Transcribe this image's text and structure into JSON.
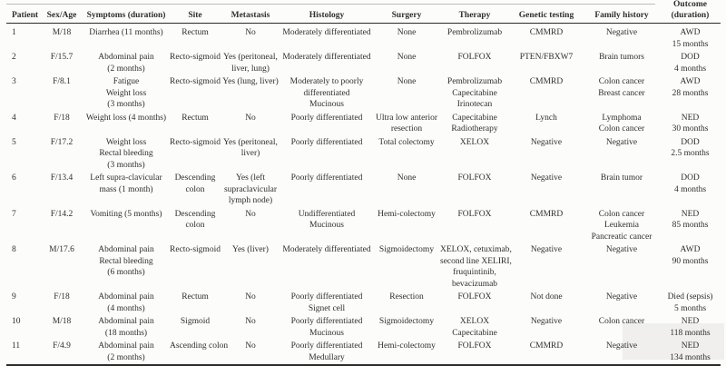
{
  "colors": {
    "text": "#2e2e2e",
    "rule_dark": "#2b2b2b",
    "rule_light": "#bdbdbd",
    "background": "#fcfcfb",
    "shade_patch": "#f0efee"
  },
  "table": {
    "columns": [
      {
        "id": "patient",
        "header": [
          "Patient"
        ]
      },
      {
        "id": "sex-age",
        "header": [
          "Sex/Age"
        ]
      },
      {
        "id": "symptoms",
        "header": [
          "Symptoms (duration)"
        ]
      },
      {
        "id": "site",
        "header": [
          "Site"
        ]
      },
      {
        "id": "metastasis",
        "header": [
          "Metastasis"
        ]
      },
      {
        "id": "histology",
        "header": [
          "Histology"
        ]
      },
      {
        "id": "surgery",
        "header": [
          "Surgery"
        ]
      },
      {
        "id": "therapy",
        "header": [
          "Therapy"
        ]
      },
      {
        "id": "genetic-testing",
        "header": [
          "Genetic testing"
        ]
      },
      {
        "id": "family-history",
        "header": [
          "Family history"
        ]
      },
      {
        "id": "outcome",
        "header": [
          "Outcome",
          "(duration)"
        ]
      }
    ],
    "rows": [
      {
        "cells": [
          [
            "1"
          ],
          [
            "M/18"
          ],
          [
            "Diarrhea (11 months)"
          ],
          [
            "Rectum"
          ],
          [
            "No"
          ],
          [
            "Moderately differentiated"
          ],
          [
            "None"
          ],
          [
            "Pembrolizumab"
          ],
          [
            "CMMRD"
          ],
          [
            "Negative"
          ],
          [
            "AWD",
            "15 months"
          ]
        ]
      },
      {
        "cells": [
          [
            "2"
          ],
          [
            "F/15.7"
          ],
          [
            "Abdominal pain",
            "(2 months)"
          ],
          [
            "Recto-sigmoid"
          ],
          [
            "Yes (peritoneal,",
            "liver, lung)"
          ],
          [
            "Moderately differentiated"
          ],
          [
            "None"
          ],
          [
            "FOLFOX"
          ],
          [
            "PTEN/FBXW7"
          ],
          [
            "Brain tumors"
          ],
          [
            "DOD",
            "4 months"
          ]
        ]
      },
      {
        "cells": [
          [
            "3"
          ],
          [
            "F/8.1"
          ],
          [
            "Fatigue",
            "Weight loss",
            "(3 months)"
          ],
          [
            "Recto-sigmoid"
          ],
          [
            "Yes (lung, liver)"
          ],
          [
            "Moderately to poorly",
            "differentiated",
            "Mucinous"
          ],
          [
            "None"
          ],
          [
            "Pembrolizumab",
            "Capecitabine",
            "Irinotecan"
          ],
          [
            "CMMRD"
          ],
          [
            "Colon cancer",
            "Breast cancer"
          ],
          [
            "AWD",
            "28 months"
          ]
        ]
      },
      {
        "cells": [
          [
            "4"
          ],
          [
            "F/18"
          ],
          [
            "Weight loss (4 months)"
          ],
          [
            "Rectum"
          ],
          [
            "No"
          ],
          [
            "Poorly differentiated"
          ],
          [
            "Ultra low anterior",
            "resection"
          ],
          [
            "Capecitabine",
            "Radiotherapy"
          ],
          [
            "Lynch"
          ],
          [
            "Lymphoma",
            "Colon cancer"
          ],
          [
            "NED",
            "30 months"
          ]
        ]
      },
      {
        "cells": [
          [
            "5"
          ],
          [
            "F/17.2"
          ],
          [
            "Weight loss",
            "Rectal bleeding",
            "(3 months)"
          ],
          [
            "Recto-sigmoid"
          ],
          [
            "Yes (peritoneal,",
            "liver)"
          ],
          [
            "Poorly differentiated"
          ],
          [
            "Total colectomy"
          ],
          [
            "XELOX"
          ],
          [
            "Negative"
          ],
          [
            "Negative"
          ],
          [
            "DOD",
            "2.5 months"
          ]
        ]
      },
      {
        "cells": [
          [
            "6"
          ],
          [
            "F/13.4"
          ],
          [
            "Left supra-clavicular",
            "mass (1 month)"
          ],
          [
            "Descending",
            "colon"
          ],
          [
            "Yes (left",
            "supraclavicular",
            "lymph node)"
          ],
          [
            "Poorly differentiated"
          ],
          [
            "None"
          ],
          [
            "FOLFOX"
          ],
          [
            "Negative"
          ],
          [
            "Brain tumor"
          ],
          [
            "DOD",
            "4 months"
          ]
        ]
      },
      {
        "cells": [
          [
            "7"
          ],
          [
            "F/14.2"
          ],
          [
            "Vomiting (5 months)"
          ],
          [
            "Descending",
            "colon"
          ],
          [
            "No"
          ],
          [
            "Undifferentiated",
            "Mucinous"
          ],
          [
            "Hemi-colectomy"
          ],
          [
            "FOLFOX"
          ],
          [
            "CMMRD"
          ],
          [
            "Colon cancer",
            "Leukemia",
            "Pancreatic cancer"
          ],
          [
            "NED",
            "85 months"
          ]
        ]
      },
      {
        "cells": [
          [
            "8"
          ],
          [
            "M/17.6"
          ],
          [
            "Abdominal pain",
            "Rectal bleeding",
            "(6 months)"
          ],
          [
            "Recto-sigmoid"
          ],
          [
            "Yes (liver)"
          ],
          [
            "Moderately differentiated"
          ],
          [
            "Sigmoidectomy"
          ],
          [
            "XELOX, cetuximab,",
            "second line XELIRI,",
            "fruquintinib,",
            "bevacizumab"
          ],
          [
            "Negative"
          ],
          [
            "Negative"
          ],
          [
            "AWD",
            "90 months"
          ]
        ]
      },
      {
        "cells": [
          [
            "9"
          ],
          [
            "F/18"
          ],
          [
            "Abdominal pain",
            "(4 months)"
          ],
          [
            "Rectum"
          ],
          [
            "No"
          ],
          [
            "Poorly differentiated",
            "Signet cell"
          ],
          [
            "Resection"
          ],
          [
            "FOLFOX"
          ],
          [
            "Not done"
          ],
          [
            "Negative"
          ],
          [
            "Died (sepsis)",
            "5 months"
          ]
        ]
      },
      {
        "cells": [
          [
            "10"
          ],
          [
            "M/18"
          ],
          [
            "Abdominal pain",
            "(18 months)"
          ],
          [
            "Sigmoid"
          ],
          [
            "No"
          ],
          [
            "Poorly differentiated",
            "Mucinous"
          ],
          [
            "Sigmoidectomy"
          ],
          [
            "XELOX",
            "Capecitabine"
          ],
          [
            "Negative"
          ],
          [
            "Colon cancer"
          ],
          [
            "NED",
            "118 months"
          ]
        ]
      },
      {
        "cells": [
          [
            "11"
          ],
          [
            "F/4.9"
          ],
          [
            "Abdominal pain",
            "(2 months)"
          ],
          [
            "Ascending colon"
          ],
          [
            "No"
          ],
          [
            "Poorly differentiated",
            "Medullary"
          ],
          [
            "Hemi-colectomy"
          ],
          [
            "FOLFOX"
          ],
          [
            "CMMRD"
          ],
          [
            "Negative"
          ],
          [
            "NED",
            "134 months"
          ]
        ]
      }
    ]
  }
}
